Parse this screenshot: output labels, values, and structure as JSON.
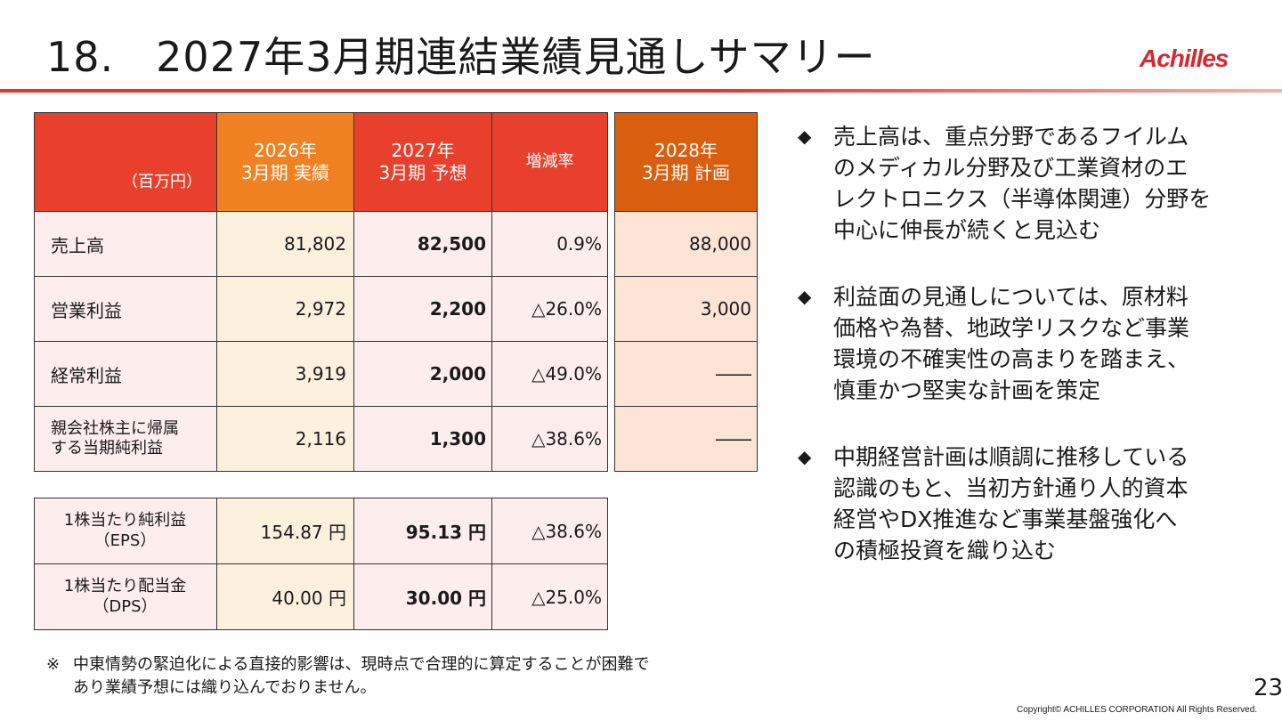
{
  "slide": {
    "title": "18.　2027年3月期連結業績見通しサマリー",
    "logo": "Achilles",
    "page_number": "23",
    "copyright": "Copyright© ACHILLES CORPORATION All Rights  Reserved."
  },
  "main_table": {
    "headers": {
      "unit": "（百万円）",
      "fy2026": [
        "2026年",
        "3月期 実績"
      ],
      "fy2027": [
        "2027年",
        "3月期 予想"
      ],
      "rate": "増減率"
    },
    "rows": [
      {
        "label": [
          "売上高"
        ],
        "fy2026": "81,802",
        "fy2027": "82,500",
        "rate": "0.9%"
      },
      {
        "label": [
          "営業利益"
        ],
        "fy2026": "2,972",
        "fy2027": "2,200",
        "rate": "△26.0%"
      },
      {
        "label": [
          "経常利益"
        ],
        "fy2026": "3,919",
        "fy2027": "2,000",
        "rate": "△49.0%"
      },
      {
        "label": [
          "親会社株主に帰属",
          "する当期純利益"
        ],
        "fy2026": "2,116",
        "fy2027": "1,300",
        "rate": "△38.6%"
      }
    ]
  },
  "plan_table": {
    "header": [
      "2028年",
      "3月期 計画"
    ],
    "values": [
      "88,000",
      "3,000",
      "――",
      "――"
    ]
  },
  "per_share_table": {
    "rows": [
      {
        "label": [
          "1株当たり純利益",
          "（EPS）"
        ],
        "fy2026": "154.87 円",
        "fy2027": "95.13 円",
        "rate": "△38.6%"
      },
      {
        "label": [
          "1株当たり配当金",
          "（DPS）"
        ],
        "fy2026": "40.00 円",
        "fy2027": "30.00 円",
        "rate": "△25.0%"
      }
    ]
  },
  "bullets": {
    "marker": "◆",
    "items": [
      [
        "売上高は、重点分野であるフイルム",
        "のメディカル分野及び工業資材のエ",
        "レクトロニクス（半導体関連）分野を",
        "中心に伸長が続くと見込む"
      ],
      [
        "利益面の見通しについては、原材料",
        "価格や為替、地政学リスクなど事業",
        "環境の不確実性の高まりを踏まえ、",
        "慎重かつ堅実な計画を策定"
      ],
      [
        "中期経営計画は順調に推移している",
        "認識のもと、当初方針通り人的資本",
        "経営やDX推進など事業基盤強化へ",
        "の積極投資を織り込む"
      ]
    ]
  },
  "note": {
    "marker": "※",
    "lines": [
      "中東情勢の緊迫化による直接的影響は、現時点で合理的に算定することが困難で",
      "あり業績予想には織り込んでおりません。"
    ]
  },
  "colors": {
    "accent_red": "#e8402d",
    "fy2026_orange": "#f08224",
    "plan_orange": "#d95f0e",
    "logo_red": "#d7282f"
  }
}
